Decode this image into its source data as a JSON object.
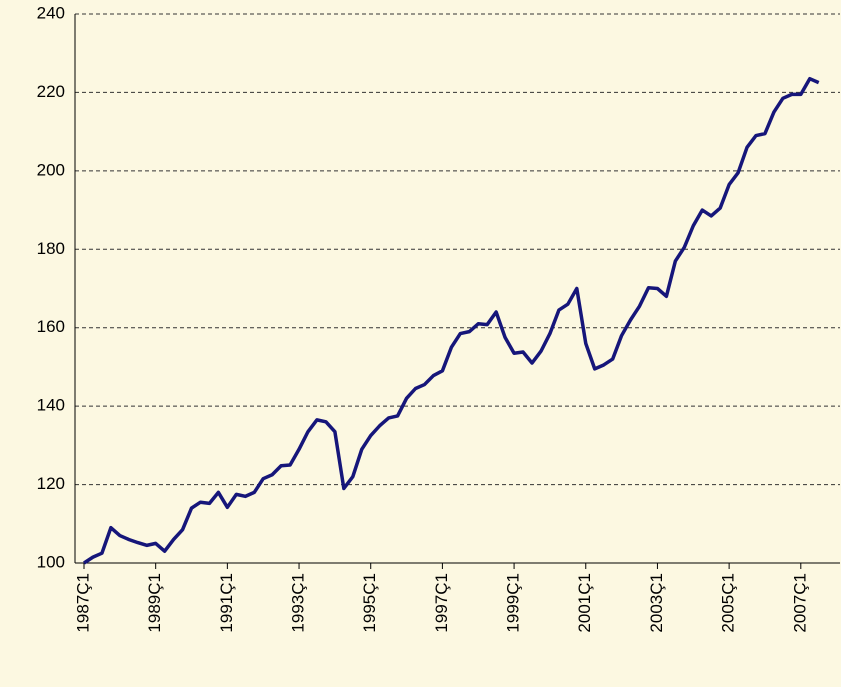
{
  "chart_data": {
    "type": "line",
    "categories": [
      "1987Ç1",
      null,
      null,
      null,
      null,
      null,
      null,
      null,
      "1989Ç1",
      null,
      null,
      null,
      null,
      null,
      null,
      null,
      "1991Ç1",
      null,
      null,
      null,
      null,
      null,
      null,
      null,
      "1993Ç1",
      null,
      null,
      null,
      null,
      null,
      null,
      null,
      "1995Ç1",
      null,
      null,
      null,
      null,
      null,
      null,
      null,
      "1997Ç1",
      null,
      null,
      null,
      null,
      null,
      null,
      null,
      "1999Ç1",
      null,
      null,
      null,
      null,
      null,
      null,
      null,
      "2001Ç1",
      null,
      null,
      null,
      null,
      null,
      null,
      null,
      "2003Ç1",
      null,
      null,
      null,
      null,
      null,
      null,
      null,
      "2005Ç1",
      null,
      null,
      null,
      null,
      null,
      null,
      null,
      "2007Ç1",
      null,
      null
    ],
    "series": [
      {
        "color": "#16167a",
        "values": [
          100,
          101.5,
          102.5,
          109,
          107,
          106,
          105.2,
          104.5,
          105,
          103,
          106,
          108.5,
          114,
          115.5,
          115.2,
          118,
          114.2,
          117.5,
          117,
          118,
          121.5,
          122.5,
          124.8,
          125,
          129,
          133.5,
          136.5,
          136,
          133.5,
          119,
          122,
          129,
          132.5,
          135,
          137,
          137.5,
          142,
          144.5,
          145.5,
          147.8,
          149,
          155,
          158.5,
          159,
          161,
          160.8,
          164,
          157.5,
          153.5,
          153.8,
          151,
          154,
          158.5,
          164.5,
          166,
          170,
          156,
          149.5,
          150.5,
          152,
          158,
          162,
          165.5,
          170.2,
          170,
          168,
          177,
          180.5,
          186,
          190,
          188.5,
          190.5,
          196.5,
          199.5,
          206,
          209,
          209.5,
          215,
          218.5,
          219.5,
          219.5,
          223.5,
          222.5
        ]
      }
    ],
    "ylim": [
      100,
      240
    ],
    "yticks": [
      100,
      120,
      140,
      160,
      180,
      200,
      220,
      240
    ],
    "grid": true
  }
}
